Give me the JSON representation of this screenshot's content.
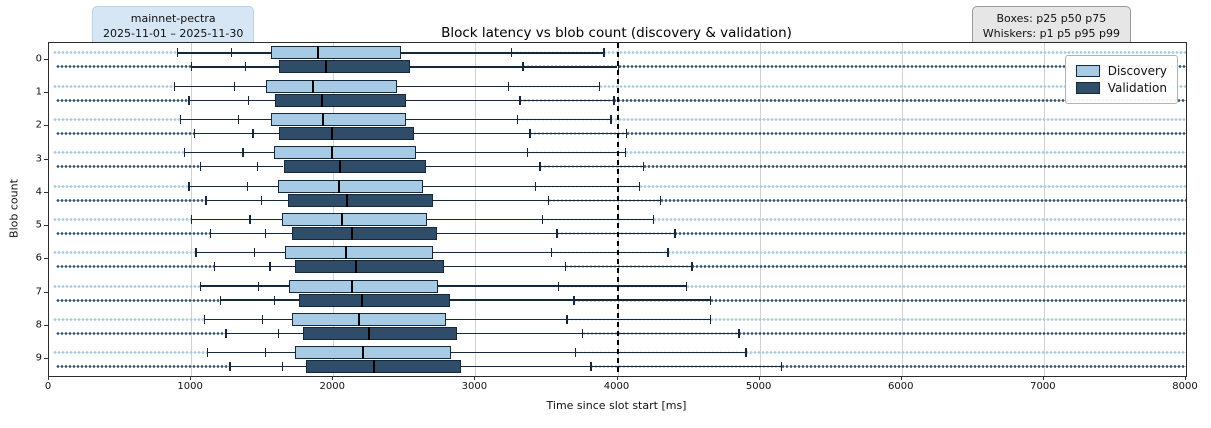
{
  "header": {
    "left_badge": {
      "line1": "mainnet-pectra",
      "line2": "2025-11-01 – 2025-11-30"
    },
    "right_badge": {
      "line1": "Boxes: p25 p50 p75",
      "line2": "Whiskers: p1 p5 p95 p99"
    }
  },
  "chart_data": {
    "type": "boxplot",
    "orientation": "horizontal",
    "title": "Block latency vs blob count (discovery & validation)",
    "xlabel": "Time since slot start [ms]",
    "ylabel": "Blob count",
    "xlim": [
      0,
      8000
    ],
    "xticks": [
      0,
      1000,
      2000,
      3000,
      4000,
      5000,
      6000,
      7000,
      8000
    ],
    "categories": [
      "0",
      "1",
      "2",
      "3",
      "4",
      "5",
      "6",
      "7",
      "8",
      "9"
    ],
    "reference_line_x": 4000,
    "grid": "vertical-major",
    "legend_position": "upper-right",
    "legend": [
      {
        "name": "Discovery",
        "color": "#a7cbe5"
      },
      {
        "name": "Validation",
        "color": "#2f4d68"
      }
    ],
    "series": [
      {
        "name": "Discovery",
        "color": "#a7cbe5",
        "edge_color": "#16293c",
        "fliers": {
          "low_min": 30,
          "high_max": 8000
        },
        "boxes": [
          {
            "blob": 0,
            "p1": 900,
            "p5": 1280,
            "p25": 1560,
            "p50": 1890,
            "p75": 2480,
            "p95": 3250,
            "p99": 3900
          },
          {
            "blob": 1,
            "p1": 880,
            "p5": 1300,
            "p25": 1530,
            "p50": 1860,
            "p75": 2450,
            "p95": 3230,
            "p99": 3870
          },
          {
            "blob": 2,
            "p1": 920,
            "p5": 1330,
            "p25": 1560,
            "p50": 1930,
            "p75": 2510,
            "p95": 3290,
            "p99": 3950
          },
          {
            "blob": 3,
            "p1": 950,
            "p5": 1360,
            "p25": 1580,
            "p50": 1990,
            "p75": 2580,
            "p95": 3360,
            "p99": 4050
          },
          {
            "blob": 4,
            "p1": 980,
            "p5": 1390,
            "p25": 1610,
            "p50": 2040,
            "p75": 2630,
            "p95": 3420,
            "p99": 4150
          },
          {
            "blob": 5,
            "p1": 1000,
            "p5": 1410,
            "p25": 1640,
            "p50": 2060,
            "p75": 2660,
            "p95": 3470,
            "p99": 4250
          },
          {
            "blob": 6,
            "p1": 1030,
            "p5": 1440,
            "p25": 1660,
            "p50": 2090,
            "p75": 2700,
            "p95": 3530,
            "p99": 4350
          },
          {
            "blob": 7,
            "p1": 1060,
            "p5": 1470,
            "p25": 1690,
            "p50": 2130,
            "p75": 2740,
            "p95": 3580,
            "p99": 4480
          },
          {
            "blob": 8,
            "p1": 1090,
            "p5": 1500,
            "p25": 1710,
            "p50": 2180,
            "p75": 2790,
            "p95": 3640,
            "p99": 4650
          },
          {
            "blob": 9,
            "p1": 1110,
            "p5": 1520,
            "p25": 1730,
            "p50": 2210,
            "p75": 2830,
            "p95": 3700,
            "p99": 4900
          }
        ]
      },
      {
        "name": "Validation",
        "color": "#2f4d68",
        "edge_color": "#16293c",
        "fliers": {
          "low_min": 50,
          "high_max": 8000
        },
        "boxes": [
          {
            "blob": 0,
            "p1": 1000,
            "p5": 1380,
            "p25": 1620,
            "p50": 1950,
            "p75": 2540,
            "p95": 3330,
            "p99": 4000
          },
          {
            "blob": 1,
            "p1": 980,
            "p5": 1400,
            "p25": 1590,
            "p50": 1920,
            "p75": 2510,
            "p95": 3310,
            "p99": 3970
          },
          {
            "blob": 2,
            "p1": 1020,
            "p5": 1430,
            "p25": 1620,
            "p50": 1990,
            "p75": 2570,
            "p95": 3380,
            "p99": 4060
          },
          {
            "blob": 3,
            "p1": 1060,
            "p5": 1460,
            "p25": 1650,
            "p50": 2050,
            "p75": 2650,
            "p95": 3450,
            "p99": 4180
          },
          {
            "blob": 4,
            "p1": 1100,
            "p5": 1490,
            "p25": 1680,
            "p50": 2100,
            "p75": 2700,
            "p95": 3510,
            "p99": 4300
          },
          {
            "blob": 5,
            "p1": 1130,
            "p5": 1520,
            "p25": 1710,
            "p50": 2130,
            "p75": 2730,
            "p95": 3570,
            "p99": 4400
          },
          {
            "blob": 6,
            "p1": 1160,
            "p5": 1550,
            "p25": 1730,
            "p50": 2160,
            "p75": 2780,
            "p95": 3630,
            "p99": 4520
          },
          {
            "blob": 7,
            "p1": 1200,
            "p5": 1580,
            "p25": 1760,
            "p50": 2200,
            "p75": 2820,
            "p95": 3690,
            "p99": 4650
          },
          {
            "blob": 8,
            "p1": 1240,
            "p5": 1610,
            "p25": 1790,
            "p50": 2250,
            "p75": 2870,
            "p95": 3750,
            "p99": 4850
          },
          {
            "blob": 9,
            "p1": 1270,
            "p5": 1640,
            "p25": 1810,
            "p50": 2290,
            "p75": 2900,
            "p95": 3810,
            "p99": 5150
          }
        ]
      }
    ]
  }
}
